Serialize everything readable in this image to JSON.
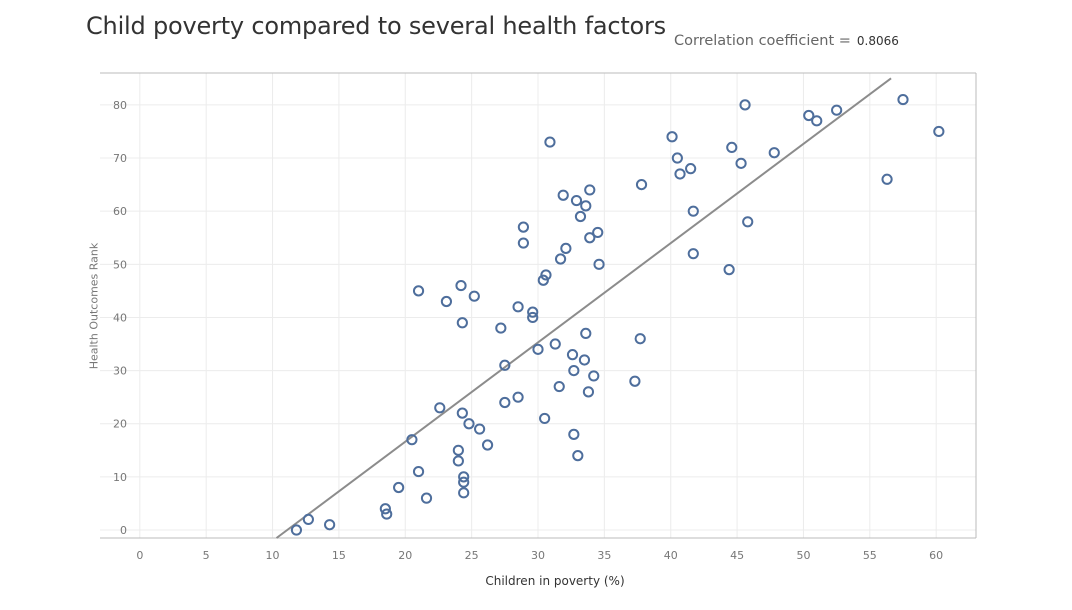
{
  "correlation": {
    "label": "Correlation coefficient =",
    "value": "0.8066"
  },
  "chart_data": {
    "type": "scatter",
    "title": "Child poverty compared to several health factors",
    "xlabel": "Children in poverty (%)",
    "ylabel": "Health Outcomes Rank",
    "xlim": [
      -3,
      63
    ],
    "ylim": [
      -1.5,
      86
    ],
    "xticks": [
      0,
      5,
      10,
      15,
      20,
      25,
      30,
      35,
      40,
      45,
      50,
      55,
      60
    ],
    "yticks": [
      0,
      10,
      20,
      30,
      40,
      50,
      60,
      70,
      80
    ],
    "grid": true,
    "trendline": {
      "x0": 10.3,
      "y0": -1.5,
      "x1": 56.6,
      "y1": 85
    },
    "colors": {
      "marker": "#4e6e9c",
      "trendline": "#8c8c8c",
      "grid": "#ececec",
      "frame": "#bbbbbb"
    },
    "points": [
      [
        11.8,
        0
      ],
      [
        12.7,
        2
      ],
      [
        14.3,
        1
      ],
      [
        18.5,
        4
      ],
      [
        18.6,
        3
      ],
      [
        19.5,
        8
      ],
      [
        20.5,
        17
      ],
      [
        21.0,
        11
      ],
      [
        21.6,
        6
      ],
      [
        22.6,
        23
      ],
      [
        21.0,
        45
      ],
      [
        23.1,
        43
      ],
      [
        24.0,
        15
      ],
      [
        24.0,
        13
      ],
      [
        24.3,
        22
      ],
      [
        24.4,
        10
      ],
      [
        24.4,
        9
      ],
      [
        24.4,
        7
      ],
      [
        24.8,
        20
      ],
      [
        24.2,
        46
      ],
      [
        24.3,
        39
      ],
      [
        25.2,
        44
      ],
      [
        25.6,
        19
      ],
      [
        26.2,
        16
      ],
      [
        27.2,
        38
      ],
      [
        27.5,
        31
      ],
      [
        27.5,
        24
      ],
      [
        28.5,
        25
      ],
      [
        28.5,
        42
      ],
      [
        28.9,
        57
      ],
      [
        28.9,
        54
      ],
      [
        29.6,
        41
      ],
      [
        29.6,
        40
      ],
      [
        30.0,
        34
      ],
      [
        30.5,
        21
      ],
      [
        30.4,
        47
      ],
      [
        30.6,
        48
      ],
      [
        30.9,
        73
      ],
      [
        31.3,
        35
      ],
      [
        31.6,
        27
      ],
      [
        31.7,
        51
      ],
      [
        31.9,
        63
      ],
      [
        32.1,
        53
      ],
      [
        32.6,
        33
      ],
      [
        32.7,
        30
      ],
      [
        32.7,
        18
      ],
      [
        32.9,
        62
      ],
      [
        33.0,
        14
      ],
      [
        33.2,
        59
      ],
      [
        33.5,
        32
      ],
      [
        33.6,
        37
      ],
      [
        33.6,
        61
      ],
      [
        33.8,
        26
      ],
      [
        33.9,
        64
      ],
      [
        33.9,
        55
      ],
      [
        34.2,
        29
      ],
      [
        34.5,
        56
      ],
      [
        34.6,
        50
      ],
      [
        37.3,
        28
      ],
      [
        37.7,
        36
      ],
      [
        37.8,
        65
      ],
      [
        40.1,
        74
      ],
      [
        40.5,
        70
      ],
      [
        40.7,
        67
      ],
      [
        41.5,
        68
      ],
      [
        41.7,
        60
      ],
      [
        41.7,
        52
      ],
      [
        44.4,
        49
      ],
      [
        44.6,
        72
      ],
      [
        45.3,
        69
      ],
      [
        45.6,
        80
      ],
      [
        45.8,
        58
      ],
      [
        47.8,
        71
      ],
      [
        50.4,
        78
      ],
      [
        51.0,
        77
      ],
      [
        52.5,
        79
      ],
      [
        56.3,
        66
      ],
      [
        57.5,
        81
      ],
      [
        60.2,
        75
      ]
    ]
  }
}
